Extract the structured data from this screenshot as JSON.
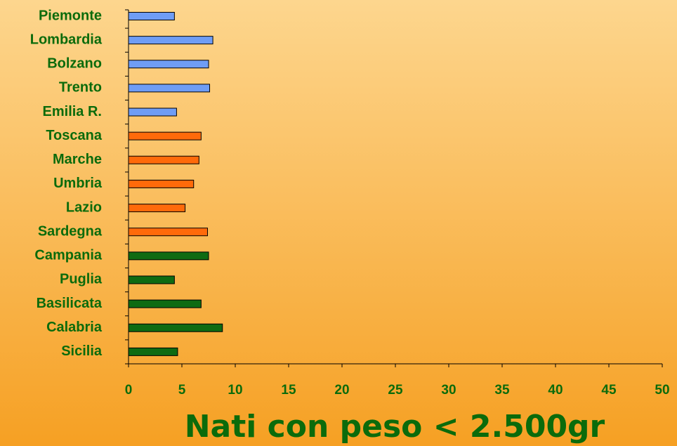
{
  "chart_data": {
    "type": "bar",
    "orientation": "horizontal",
    "x_label": "Nati con peso < 2.500gr",
    "categories": [
      "Piemonte",
      "Lombardia",
      "Bolzano",
      "Trento",
      "Emilia R.",
      "Toscana",
      "Marche",
      "Umbria",
      "Lazio",
      "Sardegna",
      "Campania",
      "Puglia",
      "Basilicata",
      "Calabria",
      "Sicilia"
    ],
    "values": [
      4.3,
      7.9,
      7.5,
      7.6,
      4.5,
      6.8,
      6.6,
      6.1,
      5.3,
      7.4,
      7.5,
      4.3,
      6.8,
      8.8,
      4.6
    ],
    "colors": [
      "#6f9df5",
      "#6f9df5",
      "#6f9df5",
      "#6f9df5",
      "#6f9df5",
      "#ff6a0a",
      "#ff6a0a",
      "#ff6a0a",
      "#ff6a0a",
      "#ff6a0a",
      "#0f6b12",
      "#0f6b12",
      "#0f6b12",
      "#0f6b12",
      "#0f6b12"
    ],
    "xlim": [
      0,
      50
    ],
    "xticks": [
      0,
      5,
      10,
      15,
      20,
      25,
      30,
      35,
      40,
      45,
      50
    ],
    "grid": false
  }
}
